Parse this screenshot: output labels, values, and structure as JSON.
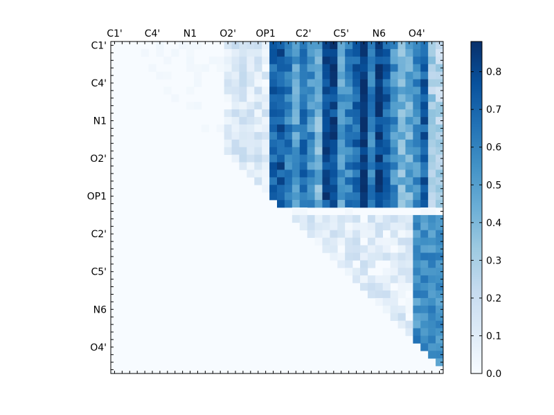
{
  "chart_data": {
    "type": "heatmap",
    "title": "",
    "xlabel": "",
    "ylabel": "",
    "x_tick_labels": [
      "C1'",
      "C4'",
      "N1",
      "O2'",
      "OP1",
      "C2'",
      "C5'",
      "N6",
      "O4'"
    ],
    "y_tick_labels": [
      "C1'",
      "C4'",
      "N1",
      "O2'",
      "OP1",
      "C2'",
      "C5'",
      "N6",
      "O4'"
    ],
    "tick_step": 5,
    "matrix_size": 44,
    "upper_triangle_only": true,
    "colormap": "Blues",
    "colormap_stops": [
      "#f7fbff",
      "#deebf7",
      "#c6dbef",
      "#9ecae1",
      "#6baed6",
      "#4292c6",
      "#2171b5",
      "#08519c",
      "#08306b"
    ],
    "value_range": [
      0.0,
      0.88
    ],
    "colorbar": {
      "ticks": [
        0.0,
        0.1,
        0.2,
        0.3,
        0.4,
        0.5,
        0.6,
        0.7,
        0.8
      ],
      "tick_labels": [
        "0.0",
        "0.1",
        "0.2",
        "0.3",
        "0.4",
        "0.5",
        "0.6",
        "0.7",
        "0.8"
      ]
    },
    "blocks": [
      {
        "rows": [
          0,
          22
        ],
        "cols": [
          23,
          31
        ],
        "value": 0.68,
        "note": "strong block"
      },
      {
        "rows": [
          0,
          22
        ],
        "cols": [
          31,
          38
        ],
        "value": 0.55
      },
      {
        "rows": [
          0,
          22
        ],
        "cols": [
          38,
          44
        ],
        "value": 0.3
      },
      {
        "rows": [
          0,
          22
        ],
        "cols": [
          15,
          23
        ],
        "value": 0.12
      },
      {
        "rows": [
          23,
          44
        ],
        "cols": [
          40,
          44
        ],
        "value": 0.55
      },
      {
        "rows": [
          23,
          44
        ],
        "cols": [
          23,
          40
        ],
        "value": 0.1
      }
    ],
    "column_profile_top_block": [
      0.7,
      0.75,
      0.62,
      0.5,
      0.68,
      0.55,
      0.42,
      0.78,
      0.8,
      0.5,
      0.6,
      0.7,
      0.85,
      0.6,
      0.82,
      0.7,
      0.55,
      0.4,
      0.45,
      0.55,
      0.72,
      0.3,
      0.25
    ]
  }
}
